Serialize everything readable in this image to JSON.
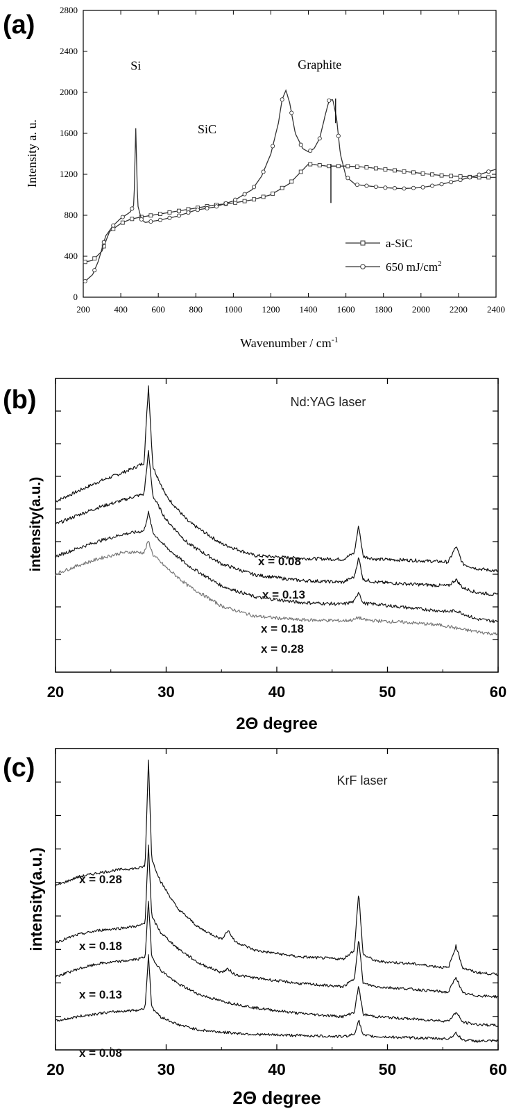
{
  "chart_data": [
    {
      "panel": "(a)",
      "type": "line",
      "xlabel": "Wavenumber / cm",
      "xlabel_sup": "-1",
      "ylabel": "Intensity a. u.",
      "xlim": [
        200,
        2400
      ],
      "ylim": [
        0,
        2800
      ],
      "xticks": [
        200,
        400,
        600,
        800,
        1000,
        1200,
        1400,
        1600,
        1800,
        2000,
        2200,
        2400
      ],
      "yticks": [
        0,
        400,
        800,
        1200,
        1600,
        2000,
        2400,
        2800
      ],
      "annotations": [
        {
          "text": "Si",
          "x": 480,
          "y": 2220
        },
        {
          "text": "SiC",
          "x": 860,
          "y": 1600
        },
        {
          "text": "Graphite",
          "x": 1460,
          "y": 2230
        }
      ],
      "legend": {
        "position": "bottom-right"
      },
      "series": [
        {
          "name": "a-SiC",
          "marker": "square",
          "x": [
            200,
            250,
            300,
            340,
            400,
            450,
            500,
            600,
            700,
            800,
            900,
            1000,
            1100,
            1200,
            1300,
            1400,
            1500,
            1600,
            1700,
            1800,
            1900,
            2000,
            2100,
            2200,
            2300,
            2400
          ],
          "y": [
            340,
            360,
            450,
            640,
            720,
            760,
            780,
            810,
            840,
            870,
            900,
            920,
            950,
            1000,
            1110,
            1300,
            1280,
            1280,
            1270,
            1250,
            1230,
            1210,
            1190,
            1180,
            1170,
            1170
          ]
        },
        {
          "name": "650 mJ/cm",
          "name_sup": "2",
          "marker": "circle",
          "x": [
            200,
            250,
            280,
            320,
            360,
            400,
            450,
            470,
            480,
            490,
            510,
            530,
            600,
            700,
            800,
            900,
            1000,
            1100,
            1150,
            1200,
            1240,
            1260,
            1280,
            1300,
            1330,
            1370,
            1400,
            1430,
            1460,
            1490,
            1510,
            1530,
            1550,
            1570,
            1600,
            1650,
            1700,
            1800,
            1900,
            2000,
            2100,
            2200,
            2300,
            2400
          ],
          "y": [
            140,
            220,
            350,
            600,
            700,
            770,
            830,
            900,
            1650,
            900,
            760,
            730,
            750,
            790,
            850,
            880,
            940,
            1050,
            1180,
            1400,
            1700,
            1930,
            2020,
            1900,
            1600,
            1450,
            1420,
            1450,
            1550,
            1780,
            1920,
            1930,
            1750,
            1400,
            1180,
            1100,
            1090,
            1070,
            1060,
            1070,
            1100,
            1140,
            1190,
            1250
          ]
        }
      ],
      "marker_line": {
        "x": 1520,
        "y": [
          920,
          1300
        ]
      }
    },
    {
      "panel": "(b)",
      "type": "line",
      "title": "Nd:YAG laser",
      "xlabel": "2Θ degree",
      "ylabel": "intensity(a.u.)",
      "xlim": [
        20,
        60
      ],
      "xticks": [
        20,
        30,
        40,
        50,
        60
      ],
      "series": [
        {
          "name": "x = 0.08",
          "x": [
            20,
            22,
            24,
            26,
            27,
            28,
            28.4,
            28.8,
            30,
            32,
            35,
            38,
            42,
            46,
            47,
            47.4,
            47.8,
            49,
            52,
            55.5,
            56.2,
            56.8,
            58,
            60
          ],
          "y": [
            0.93,
            0.985,
            1.04,
            1.085,
            1.11,
            1.14,
            1.56,
            1.12,
            0.96,
            0.82,
            0.7,
            0.635,
            0.62,
            0.615,
            0.65,
            0.8,
            0.63,
            0.615,
            0.61,
            0.6,
            0.685,
            0.59,
            0.565,
            0.55
          ]
        },
        {
          "name": "x = 0.13",
          "x": [
            20,
            22,
            24,
            26,
            27,
            28,
            28.4,
            28.8,
            30,
            32,
            35,
            38,
            42,
            46,
            47,
            47.4,
            47.8,
            49,
            52,
            55.5,
            56.2,
            56.8,
            58,
            60
          ],
          "y": [
            0.805,
            0.855,
            0.9,
            0.935,
            0.955,
            0.97,
            1.2,
            0.96,
            0.83,
            0.7,
            0.59,
            0.53,
            0.5,
            0.49,
            0.52,
            0.625,
            0.505,
            0.49,
            0.48,
            0.47,
            0.505,
            0.46,
            0.435,
            0.42
          ]
        },
        {
          "name": "x = 0.18",
          "x": [
            20,
            22,
            24,
            26,
            27,
            28,
            28.4,
            28.8,
            30,
            32,
            35,
            38,
            42,
            46,
            47,
            47.4,
            47.8,
            49,
            52,
            55.5,
            56.2,
            56.8,
            58,
            60
          ],
          "y": [
            0.63,
            0.675,
            0.715,
            0.75,
            0.76,
            0.77,
            0.87,
            0.76,
            0.68,
            0.58,
            0.47,
            0.41,
            0.38,
            0.37,
            0.385,
            0.44,
            0.375,
            0.37,
            0.35,
            0.33,
            0.335,
            0.32,
            0.29,
            0.275
          ]
        },
        {
          "name": "x = 0.28",
          "x": [
            20,
            22,
            24,
            26,
            27,
            28,
            28.4,
            28.8,
            30,
            32,
            35,
            38,
            42,
            46,
            47,
            47.4,
            47.8,
            49,
            52,
            55,
            57,
            60
          ],
          "y": [
            0.535,
            0.58,
            0.62,
            0.65,
            0.655,
            0.65,
            0.715,
            0.64,
            0.57,
            0.47,
            0.36,
            0.305,
            0.285,
            0.28,
            0.285,
            0.3,
            0.285,
            0.28,
            0.27,
            0.255,
            0.23,
            0.205
          ]
        }
      ]
    },
    {
      "panel": "(c)",
      "type": "line",
      "title": "KrF laser",
      "xlabel": "2Θ degree",
      "ylabel": "intensity(a.u.)",
      "xlim": [
        20,
        60
      ],
      "xticks": [
        20,
        30,
        40,
        50,
        60
      ],
      "series": [
        {
          "name": "x = 0.28",
          "x": [
            20,
            22,
            24,
            26,
            27.5,
            28.1,
            28.4,
            28.7,
            29.5,
            31,
            33,
            35,
            35.6,
            36.2,
            38,
            42,
            46,
            47,
            47.4,
            47.8,
            49,
            52,
            55.5,
            56.2,
            56.8,
            58,
            60
          ],
          "y": [
            0.74,
            0.78,
            0.8,
            0.815,
            0.82,
            0.83,
            1.31,
            0.86,
            0.76,
            0.64,
            0.55,
            0.5,
            0.54,
            0.49,
            0.45,
            0.42,
            0.41,
            0.45,
            0.71,
            0.43,
            0.4,
            0.39,
            0.37,
            0.47,
            0.37,
            0.35,
            0.34
          ]
        },
        {
          "name": "x = 0.18",
          "x": [
            20,
            22,
            24,
            26,
            27.5,
            28.1,
            28.4,
            28.7,
            29.5,
            31,
            33,
            35,
            35.6,
            36.2,
            38,
            42,
            46,
            47,
            47.4,
            47.8,
            49,
            52,
            55.5,
            56.2,
            56.8,
            58,
            60
          ],
          "y": [
            0.485,
            0.52,
            0.54,
            0.55,
            0.56,
            0.57,
            0.93,
            0.6,
            0.53,
            0.46,
            0.39,
            0.35,
            0.365,
            0.34,
            0.325,
            0.3,
            0.285,
            0.32,
            0.5,
            0.3,
            0.285,
            0.275,
            0.26,
            0.33,
            0.255,
            0.245,
            0.24
          ]
        },
        {
          "name": "x = 0.13",
          "x": [
            20,
            22,
            24,
            26,
            27.5,
            28.1,
            28.4,
            28.7,
            29.5,
            31,
            33,
            35,
            38,
            42,
            46,
            47,
            47.4,
            47.8,
            49,
            52,
            55.5,
            56.2,
            56.8,
            58,
            60
          ],
          "y": [
            0.33,
            0.365,
            0.39,
            0.4,
            0.41,
            0.42,
            0.67,
            0.42,
            0.36,
            0.3,
            0.25,
            0.22,
            0.19,
            0.165,
            0.15,
            0.17,
            0.29,
            0.16,
            0.15,
            0.14,
            0.13,
            0.17,
            0.125,
            0.115,
            0.11
          ]
        },
        {
          "name": "x = 0.08",
          "x": [
            20,
            22,
            24,
            26,
            27.5,
            28.1,
            28.4,
            28.7,
            29.5,
            31,
            33,
            35,
            38,
            42,
            46,
            47,
            47.4,
            47.8,
            49,
            52,
            55.5,
            56.2,
            56.8,
            58,
            60
          ],
          "y": [
            0.13,
            0.15,
            0.165,
            0.175,
            0.18,
            0.19,
            0.43,
            0.19,
            0.15,
            0.115,
            0.09,
            0.08,
            0.07,
            0.065,
            0.06,
            0.07,
            0.135,
            0.065,
            0.06,
            0.055,
            0.05,
            0.075,
            0.045,
            0.04,
            0.04
          ]
        }
      ]
    }
  ]
}
